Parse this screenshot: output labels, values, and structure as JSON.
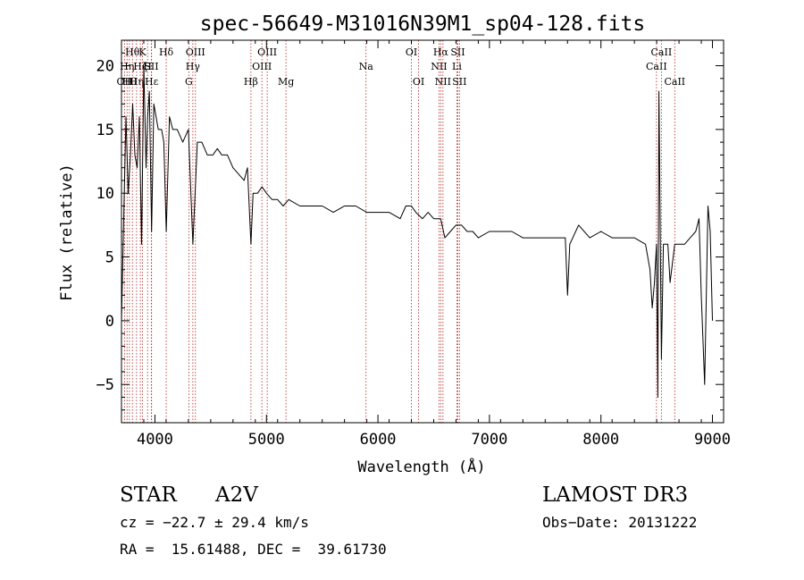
{
  "chart_data": {
    "type": "line",
    "title": "spec-56649-M31016N39M1_sp04-128.fits",
    "xlabel": "Wavelength (Å)",
    "ylabel": "Flux (relative)",
    "xlim": [
      3700,
      9100
    ],
    "ylim": [
      -8,
      22
    ],
    "x_ticks": [
      4000,
      5000,
      6000,
      7000,
      8000,
      9000
    ],
    "x_tick_labels": [
      "4000",
      "5000",
      "6000",
      "7000",
      "8000",
      "9000"
    ],
    "y_ticks": [
      -5,
      0,
      5,
      10,
      15,
      20
    ],
    "y_tick_labels": [
      "−5",
      "0",
      "5",
      "10",
      "15",
      "20"
    ],
    "line_color": "#000000",
    "marker_color": "#b22222",
    "series": [
      {
        "name": "flux",
        "x": [
          3700,
          3720,
          3740,
          3760,
          3780,
          3800,
          3820,
          3840,
          3860,
          3880,
          3900,
          3920,
          3935,
          3950,
          3970,
          3990,
          4010,
          4030,
          4060,
          4080,
          4101,
          4130,
          4160,
          4200,
          4250,
          4300,
          4340,
          4380,
          4420,
          4470,
          4520,
          4560,
          4600,
          4650,
          4700,
          4750,
          4800,
          4830,
          4861,
          4880,
          4920,
          4960,
          5000,
          5050,
          5100,
          5150,
          5200,
          5300,
          5400,
          5500,
          5600,
          5700,
          5800,
          5900,
          6000,
          6100,
          6200,
          6250,
          6300,
          6340,
          6400,
          6450,
          6500,
          6563,
          6600,
          6650,
          6700,
          6750,
          6800,
          6850,
          6900,
          7000,
          7100,
          7200,
          7300,
          7400,
          7500,
          7600,
          7680,
          7700,
          7720,
          7800,
          7900,
          8000,
          8100,
          8200,
          8300,
          8400,
          8440,
          8460,
          8480,
          8498,
          8510,
          8520,
          8542,
          8560,
          8600,
          8620,
          8662,
          8680,
          8700,
          8750,
          8800,
          8850,
          8880,
          8900,
          8930,
          8960,
          8980,
          9000
        ],
        "y": [
          0,
          8,
          16,
          10,
          13,
          17,
          13,
          12,
          16,
          6,
          20,
          12,
          16,
          18,
          7,
          17,
          16,
          15,
          15,
          14,
          7,
          16,
          15,
          15,
          14,
          15,
          6,
          14,
          14,
          13,
          13,
          13.5,
          13,
          13,
          12,
          11.5,
          11,
          12,
          6,
          10,
          10,
          10.5,
          10,
          9.5,
          9.5,
          9,
          9.5,
          9,
          9,
          9,
          8.5,
          9,
          9,
          8.5,
          8.5,
          8.5,
          8,
          9,
          9,
          8.5,
          8,
          8.5,
          8,
          8,
          6.5,
          7,
          7.5,
          7.5,
          7,
          7,
          6.5,
          7,
          7,
          7,
          6.5,
          6.5,
          6.5,
          6.5,
          6.5,
          2,
          6,
          7.5,
          6.5,
          7,
          6.5,
          6.5,
          6.5,
          6,
          4,
          1,
          3,
          6,
          -6,
          18,
          -3,
          6,
          6,
          3,
          6,
          6,
          6,
          6,
          6.5,
          7,
          8,
          2,
          -5,
          9,
          7,
          0
        ]
      }
    ],
    "line_markers": [
      {
        "x": 3727,
        "label": "OII",
        "row": 2
      },
      {
        "x": 3750,
        "label": "Hη",
        "row": 1
      },
      {
        "x": 3771,
        "label": "Hθ",
        "row": 2
      },
      {
        "x": 3798,
        "label": "Hθ",
        "row": 0
      },
      {
        "x": 3835,
        "label": "Hη",
        "row": 2
      },
      {
        "x": 3869,
        "label": "Hζ",
        "row": 1
      },
      {
        "x": 3889,
        "label": "K",
        "row": 0
      },
      {
        "x": 3934,
        "label": "H",
        "row": 1
      },
      {
        "x": 3968,
        "label": "SII",
        "row": 1
      },
      {
        "x": 3970,
        "label": "Hε",
        "row": 2
      },
      {
        "x": 4101,
        "label": "Hδ",
        "row": 0
      },
      {
        "x": 4304,
        "label": "G",
        "row": 2
      },
      {
        "x": 4340,
        "label": "Hγ",
        "row": 1
      },
      {
        "x": 4363,
        "label": "OIII",
        "row": 0
      },
      {
        "x": 4861,
        "label": "Hβ",
        "row": 2
      },
      {
        "x": 4959,
        "label": "OIII",
        "row": 1
      },
      {
        "x": 5007,
        "label": "OIII",
        "row": 0
      },
      {
        "x": 5175,
        "label": "Mg",
        "row": 2
      },
      {
        "x": 5893,
        "label": "Na",
        "row": 1
      },
      {
        "x": 6300,
        "label": "OI",
        "row": 0
      },
      {
        "x": 6364,
        "label": "OI",
        "row": 2
      },
      {
        "x": 6548,
        "label": "NII",
        "row": 1
      },
      {
        "x": 6563,
        "label": "Hα",
        "row": 0
      },
      {
        "x": 6583,
        "label": "NII",
        "row": 2
      },
      {
        "x": 6708,
        "label": "Li",
        "row": 1
      },
      {
        "x": 6716,
        "label": "SII",
        "row": 0
      },
      {
        "x": 6731,
        "label": "SII",
        "row": 2
      },
      {
        "x": 8498,
        "label": "CaII",
        "row": 1
      },
      {
        "x": 8542,
        "label": "CaII",
        "row": 0
      },
      {
        "x": 8662,
        "label": "CaII",
        "row": 2
      }
    ]
  },
  "info": {
    "object_class": "STAR",
    "subclass": "A2V",
    "survey": "LAMOST DR3",
    "cz": "cz = −22.7 ± 29.4 km/s",
    "obs_date": "Obs−Date: 20131222",
    "coords": "RA =  15.61488, DEC =  39.61730"
  }
}
